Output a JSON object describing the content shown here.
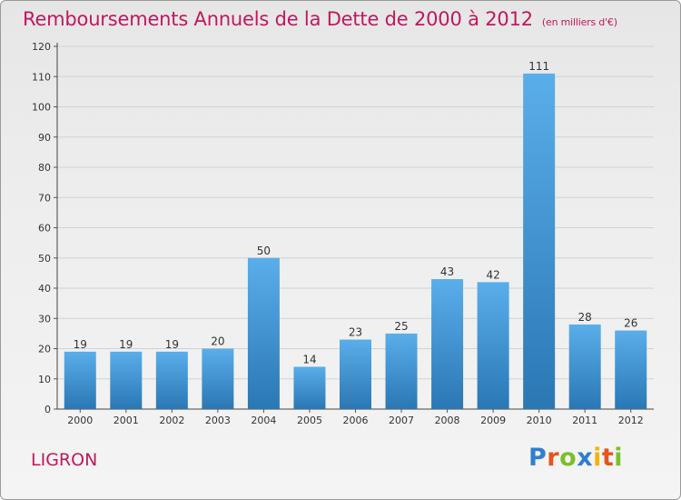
{
  "header": {
    "title": "Remboursements Annuels de la Dette de 2000 à 2012",
    "unit": "(en milliers d'€)"
  },
  "commune": "LIGRON",
  "brand": {
    "logo_text": "Proxiti",
    "logo_colors": [
      "#2f7fd0",
      "#e8541c",
      "#7bbf2a",
      "#2f7fd0",
      "#f2b400",
      "#e8541c",
      "#7bbf2a"
    ]
  },
  "colors": {
    "title": "#c0185e",
    "bar_top": "#5aaeea",
    "bar_bottom": "#2a77b4"
  },
  "chart_data": {
    "type": "bar",
    "title": "Remboursements Annuels de la Dette de 2000 à 2012",
    "subtitle": "(en milliers d'€)",
    "categories": [
      "2000",
      "2001",
      "2002",
      "2003",
      "2004",
      "2005",
      "2006",
      "2007",
      "2008",
      "2009",
      "2010",
      "2011",
      "2012"
    ],
    "values": [
      19,
      19,
      19,
      20,
      50,
      14,
      23,
      25,
      43,
      42,
      111,
      28,
      26
    ],
    "ylim": [
      0,
      120
    ],
    "yticks": [
      0,
      10,
      20,
      30,
      40,
      50,
      60,
      70,
      80,
      90,
      100,
      110,
      120
    ],
    "grid": true,
    "data_labels": true
  }
}
